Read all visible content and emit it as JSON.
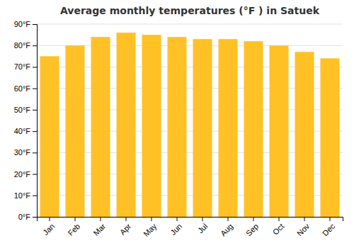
{
  "chart_data": {
    "type": "bar",
    "title": "Average monthly temperatures (°F ) in Satuek",
    "categories": [
      "Jan",
      "Feb",
      "Mar",
      "Apr",
      "May",
      "Jun",
      "Jul",
      "Aug",
      "Sep",
      "Oct",
      "Nov",
      "Dec"
    ],
    "values": [
      75,
      80,
      84,
      86,
      85,
      84,
      83,
      83,
      82,
      80,
      77,
      74
    ],
    "color": "#FFC125",
    "ylim": [
      0,
      90
    ],
    "yticks": [
      {
        "value": 0,
        "label": "0°F"
      },
      {
        "value": 10,
        "label": "10°F"
      },
      {
        "value": 20,
        "label": "20°F"
      },
      {
        "value": 30,
        "label": "30°F"
      },
      {
        "value": 40,
        "label": "40°F"
      },
      {
        "value": 50,
        "label": "50°F"
      },
      {
        "value": 60,
        "label": "60°F"
      },
      {
        "value": 70,
        "label": "70°F"
      },
      {
        "value": 80,
        "label": "80°F"
      },
      {
        "value": 90,
        "label": "90°F"
      }
    ],
    "grid": true
  }
}
